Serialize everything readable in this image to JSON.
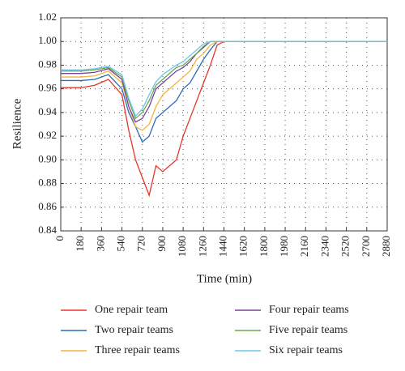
{
  "chart_data": {
    "type": "line",
    "xlabel": "Time (min)",
    "ylabel": "Resilience",
    "x": [
      0,
      180,
      300,
      420,
      540,
      600,
      660,
      720,
      780,
      840,
      900,
      960,
      1020,
      1080,
      1140,
      1200,
      1260,
      1320,
      1380,
      1440,
      2880
    ],
    "series": [
      {
        "name": "One repair team",
        "color": "#e8352b",
        "values": [
          0.961,
          0.961,
          0.963,
          0.968,
          0.955,
          0.925,
          0.9,
          0.885,
          0.87,
          0.895,
          0.89,
          0.895,
          0.9,
          0.92,
          0.935,
          0.95,
          0.965,
          0.98,
          0.997,
          1.0,
          1.0
        ]
      },
      {
        "name": "Two repair teams",
        "color": "#2a6ebb",
        "values": [
          0.967,
          0.967,
          0.968,
          0.972,
          0.96,
          0.94,
          0.928,
          0.915,
          0.92,
          0.935,
          0.94,
          0.945,
          0.95,
          0.96,
          0.965,
          0.975,
          0.985,
          0.993,
          1.0,
          1.0,
          1.0
        ]
      },
      {
        "name": "Three repair teams",
        "color": "#f2b43c",
        "values": [
          0.97,
          0.97,
          0.971,
          0.975,
          0.965,
          0.945,
          0.928,
          0.925,
          0.93,
          0.945,
          0.955,
          0.96,
          0.965,
          0.97,
          0.975,
          0.985,
          0.99,
          0.997,
          1.0,
          1.0,
          1.0
        ]
      },
      {
        "name": "Four repair teams",
        "color": "#7b3f9e",
        "values": [
          0.973,
          0.973,
          0.974,
          0.977,
          0.968,
          0.945,
          0.932,
          0.935,
          0.945,
          0.96,
          0.965,
          0.97,
          0.975,
          0.978,
          0.983,
          0.99,
          0.995,
          1.0,
          1.0,
          1.0,
          1.0
        ]
      },
      {
        "name": "Five repair teams",
        "color": "#6aa84f",
        "values": [
          0.975,
          0.975,
          0.976,
          0.978,
          0.97,
          0.95,
          0.935,
          0.94,
          0.95,
          0.963,
          0.968,
          0.973,
          0.978,
          0.98,
          0.985,
          0.99,
          0.996,
          1.0,
          1.0,
          1.0,
          1.0
        ]
      },
      {
        "name": "Six repair teams",
        "color": "#6ec6e8",
        "values": [
          0.976,
          0.976,
          0.977,
          0.979,
          0.972,
          0.952,
          0.937,
          0.943,
          0.955,
          0.966,
          0.972,
          0.976,
          0.98,
          0.983,
          0.988,
          0.993,
          0.998,
          1.0,
          1.0,
          1.0,
          1.0
        ]
      }
    ],
    "xlim": [
      0,
      2880
    ],
    "xticks": [
      0,
      180,
      360,
      540,
      720,
      900,
      1080,
      1260,
      1440,
      1620,
      1800,
      1980,
      2160,
      2340,
      2520,
      2700,
      2880
    ],
    "ylim": [
      0.84,
      1.02
    ],
    "yticks": [
      0.84,
      0.86,
      0.88,
      {
        "value": 0.9,
        "label": "0.90"
      },
      0.92,
      0.94,
      0.96,
      0.98,
      {
        "value": 1.0,
        "label": "1.00"
      },
      1.02
    ],
    "grid": true
  }
}
